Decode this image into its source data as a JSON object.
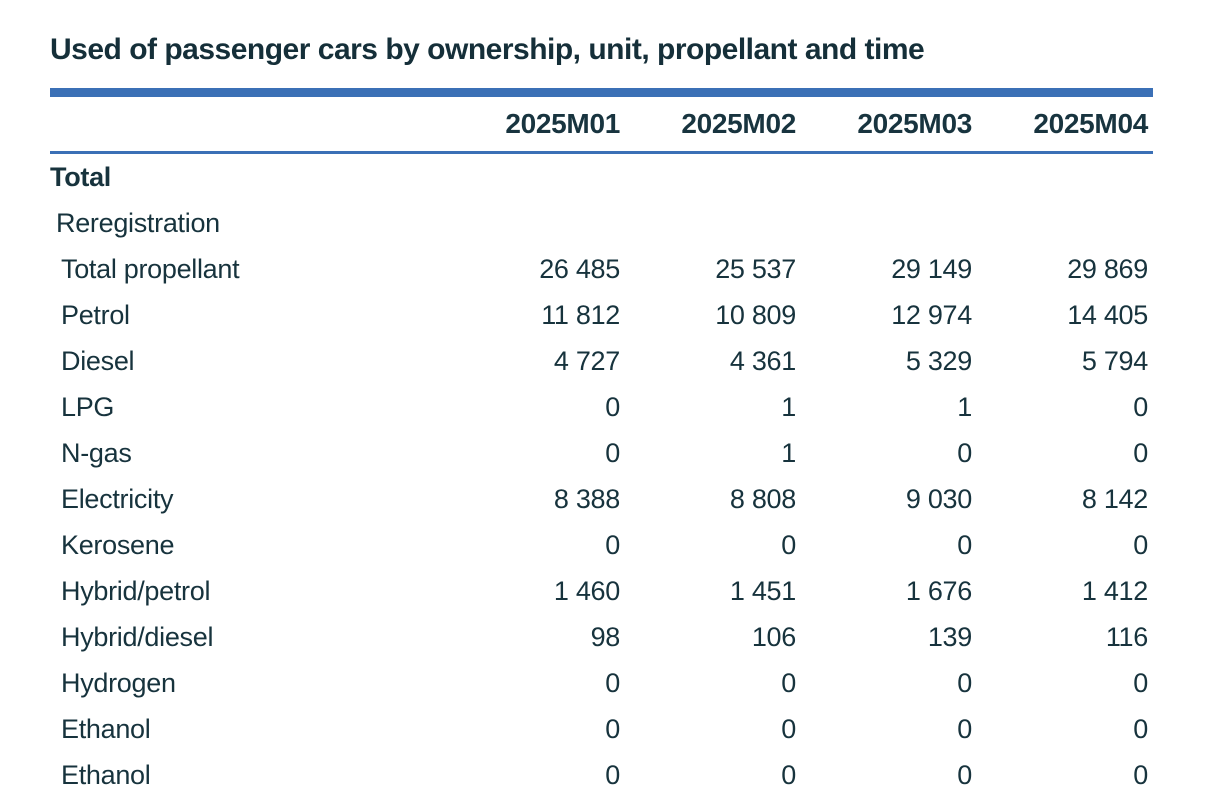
{
  "title": "Used of passenger cars by ownership, unit, propellant and time",
  "colors": {
    "accent_blue": "#3b70b6",
    "text_dark": "#17333d"
  },
  "chart_data": {
    "type": "table",
    "title": "Used of passenger cars by ownership, unit, propellant and time",
    "columns": [
      "2025M01",
      "2025M02",
      "2025M03",
      "2025M04"
    ],
    "rows": [
      {
        "label": "Total",
        "indent": 0,
        "bold": true,
        "values": [
          "",
          "",
          "",
          ""
        ]
      },
      {
        "label": "Reregistration",
        "indent": 1,
        "bold": false,
        "values": [
          "",
          "",
          "",
          ""
        ]
      },
      {
        "label": "Total propellant",
        "indent": 2,
        "bold": false,
        "values": [
          "26 485",
          "25 537",
          "29 149",
          "29 869"
        ]
      },
      {
        "label": "Petrol",
        "indent": 2,
        "bold": false,
        "values": [
          "11 812",
          "10 809",
          "12 974",
          "14 405"
        ]
      },
      {
        "label": "Diesel",
        "indent": 2,
        "bold": false,
        "values": [
          "4 727",
          "4 361",
          "5 329",
          "5 794"
        ]
      },
      {
        "label": "LPG",
        "indent": 2,
        "bold": false,
        "values": [
          "0",
          "1",
          "1",
          "0"
        ]
      },
      {
        "label": "N-gas",
        "indent": 2,
        "bold": false,
        "values": [
          "0",
          "1",
          "0",
          "0"
        ]
      },
      {
        "label": "Electricity",
        "indent": 2,
        "bold": false,
        "values": [
          "8 388",
          "8 808",
          "9 030",
          "8 142"
        ]
      },
      {
        "label": "Kerosene",
        "indent": 2,
        "bold": false,
        "values": [
          "0",
          "0",
          "0",
          "0"
        ]
      },
      {
        "label": "Hybrid/petrol",
        "indent": 2,
        "bold": false,
        "values": [
          "1 460",
          "1 451",
          "1 676",
          "1 412"
        ]
      },
      {
        "label": "Hybrid/diesel",
        "indent": 2,
        "bold": false,
        "values": [
          "98",
          "106",
          "139",
          "116"
        ]
      },
      {
        "label": "Hydrogen",
        "indent": 2,
        "bold": false,
        "values": [
          "0",
          "0",
          "0",
          "0"
        ]
      },
      {
        "label": "Ethanol",
        "indent": 2,
        "bold": false,
        "values": [
          "0",
          "0",
          "0",
          "0"
        ]
      },
      {
        "label": "Ethanol",
        "indent": 2,
        "bold": false,
        "values": [
          "0",
          "0",
          "0",
          "0"
        ]
      }
    ]
  }
}
